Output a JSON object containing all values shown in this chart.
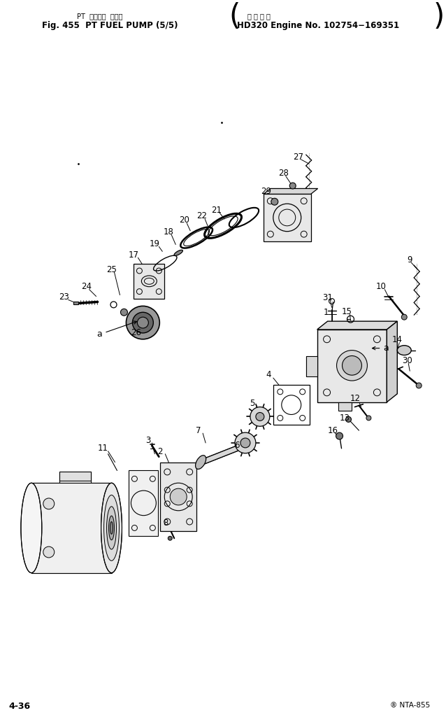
{
  "title_jp": "PT  フェエル  ポンプ",
  "title_en": "Fig. 455  PT FUEL PUMP (5/5)",
  "title_right_jp": "適 用 号 機",
  "title_right_en": "HD320 Engine No. 102754−169351",
  "page_left": "4-36",
  "page_right": "® NTA-855",
  "bg_color": "#ffffff",
  "lc": "#000000"
}
